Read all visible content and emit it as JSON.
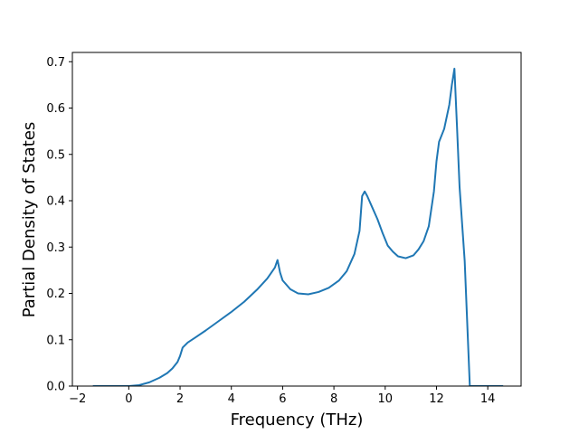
{
  "chart_data": {
    "type": "line",
    "title": "",
    "xlabel": "Frequency (THz)",
    "ylabel": "Partial Density of States",
    "xlim": [
      -2.2,
      15.3
    ],
    "ylim": [
      0.0,
      0.72
    ],
    "xticks": [
      -2,
      0,
      2,
      4,
      6,
      8,
      10,
      12,
      14
    ],
    "xtick_labels": [
      "−2",
      "0",
      "2",
      "4",
      "6",
      "8",
      "10",
      "12",
      "14"
    ],
    "yticks": [
      0.0,
      0.1,
      0.2,
      0.3,
      0.4,
      0.5,
      0.6,
      0.7
    ],
    "ytick_labels": [
      "0.0",
      "0.1",
      "0.2",
      "0.3",
      "0.4",
      "0.5",
      "0.6",
      "0.7"
    ],
    "grid": false,
    "legend": "none",
    "line_color": "#1f77b4",
    "series": [
      {
        "x": [
          -1.4,
          -0.5,
          0.0,
          0.4,
          0.8,
          1.2,
          1.5,
          1.7,
          1.9,
          2.0,
          2.1,
          2.3,
          2.6,
          3.0,
          3.5,
          4.0,
          4.5,
          5.0,
          5.4,
          5.7,
          5.8,
          5.9,
          6.0,
          6.3,
          6.6,
          7.0,
          7.4,
          7.8,
          8.2,
          8.5,
          8.8,
          9.0,
          9.1,
          9.2,
          9.3,
          9.5,
          9.7,
          9.9,
          10.1,
          10.3,
          10.5,
          10.8,
          11.1,
          11.3,
          11.5,
          11.7,
          11.9,
          12.0,
          12.1,
          12.3,
          12.5,
          12.6,
          12.7,
          12.8,
          12.9,
          13.1,
          13.3,
          13.6,
          14.0,
          14.6
        ],
        "y": [
          0.0,
          0.0,
          0.0,
          0.002,
          0.008,
          0.018,
          0.028,
          0.038,
          0.052,
          0.065,
          0.083,
          0.094,
          0.105,
          0.12,
          0.14,
          0.16,
          0.182,
          0.208,
          0.232,
          0.256,
          0.272,
          0.245,
          0.228,
          0.209,
          0.2,
          0.198,
          0.203,
          0.212,
          0.228,
          0.248,
          0.285,
          0.335,
          0.41,
          0.42,
          0.41,
          0.385,
          0.36,
          0.33,
          0.303,
          0.29,
          0.28,
          0.276,
          0.282,
          0.295,
          0.313,
          0.345,
          0.42,
          0.485,
          0.527,
          0.555,
          0.607,
          0.65,
          0.685,
          0.56,
          0.43,
          0.27,
          0.0,
          0.0,
          0.0,
          0.0
        ]
      }
    ]
  }
}
